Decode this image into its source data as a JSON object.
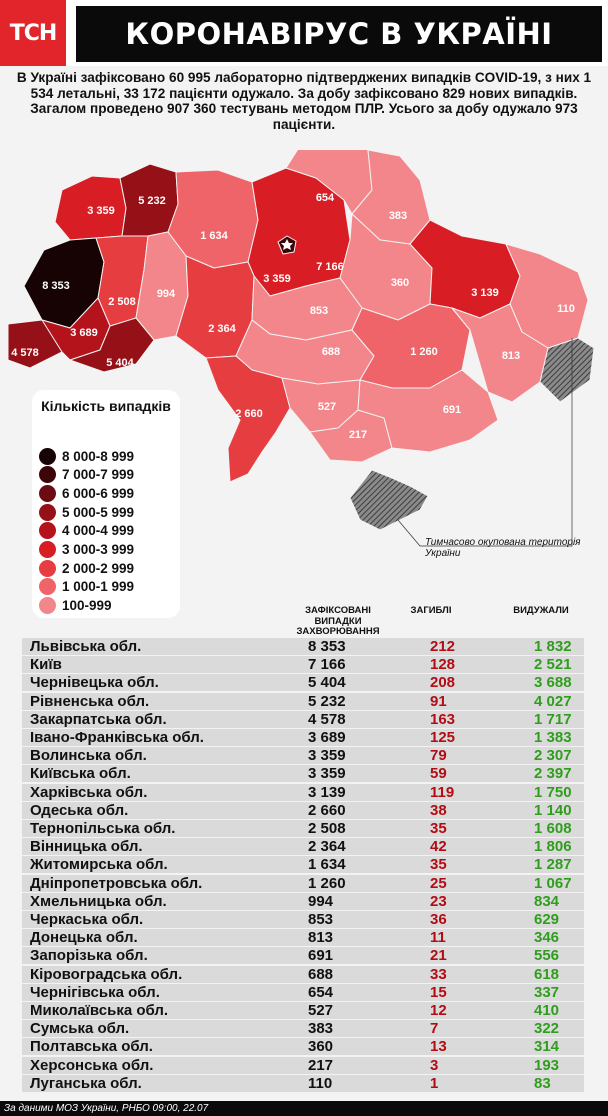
{
  "header": {
    "logo": "ТСН",
    "title": "КОРОНАВІРУС В УКРАЇНІ"
  },
  "intro": "В Україні зафіксовано 60 995 лабораторно підтверджених випадків COVID-19, з них 1 534 летальні, 33 172 пацієнти одужало. За добу зафіксовано 829 нових випадків. Загалом проведено 907 360 тестувань методом ПЛР. Усього за добу одужало 973 пацієнти.",
  "legend": {
    "title": "Кількість випадків",
    "items": [
      {
        "label": "8 000-8 999",
        "color": "#170304"
      },
      {
        "label": "7 000-7 999",
        "color": "#3d0508"
      },
      {
        "label": "6 000-6 999",
        "color": "#6e0b10"
      },
      {
        "label": "5 000-5 999",
        "color": "#951017"
      },
      {
        "label": "4 000-4 999",
        "color": "#b4131b"
      },
      {
        "label": "3 000-3 999",
        "color": "#d81e24"
      },
      {
        "label": "2 000-2 999",
        "color": "#e63d41"
      },
      {
        "label": "1 000-1 999",
        "color": "#ee6469"
      },
      {
        "label": "100-999",
        "color": "#f2868a"
      }
    ]
  },
  "map": {
    "occupied_label": "Тимчасово окупована територія України",
    "labels": [
      {
        "region": "Волинська",
        "value": "3 359"
      },
      {
        "region": "Рівненська",
        "value": "5 232"
      },
      {
        "region": "Житомирська",
        "value": "1 634"
      },
      {
        "region": "Київська",
        "value": "3 359"
      },
      {
        "region": "Київ",
        "value": "7 166"
      },
      {
        "region": "Чернігівська",
        "value": "654"
      },
      {
        "region": "Сумська",
        "value": "383"
      },
      {
        "region": "Полтавська",
        "value": "360"
      },
      {
        "region": "Харківська",
        "value": "3 139"
      },
      {
        "region": "Луганська",
        "value": "110"
      },
      {
        "region": "Львівська",
        "value": "8 353"
      },
      {
        "region": "Тернопільська",
        "value": "2 508"
      },
      {
        "region": "Хмельницька",
        "value": "994"
      },
      {
        "region": "Вінницька",
        "value": "2 364"
      },
      {
        "region": "Черкаська",
        "value": "853"
      },
      {
        "region": "Кіровоградська",
        "value": "688"
      },
      {
        "region": "Дніпропетровська",
        "value": "1 260"
      },
      {
        "region": "Донецька",
        "value": "813"
      },
      {
        "region": "Закарпатська",
        "value": "4 578"
      },
      {
        "region": "Івано-Франківська",
        "value": "3 689"
      },
      {
        "region": "Чернівецька",
        "value": "5 404"
      },
      {
        "region": "Одеська",
        "value": "2 660"
      },
      {
        "region": "Миколаївська",
        "value": "527"
      },
      {
        "region": "Херсонська",
        "value": "217"
      },
      {
        "region": "Запорізька",
        "value": "691"
      }
    ]
  },
  "table": {
    "headers": {
      "cases": "Зафіксовані випадки захворювання",
      "deaths": "Загиблі",
      "recovered": "Видужали"
    },
    "rows": [
      {
        "name": "Львівська обл.",
        "cases": "8 353",
        "deaths": "212",
        "recovered": "1 832"
      },
      {
        "name": "Київ",
        "cases": "7 166",
        "deaths": "128",
        "recovered": "2 521"
      },
      {
        "name": "Чернівецька обл.",
        "cases": "5 404",
        "deaths": "208",
        "recovered": "3 688"
      },
      {
        "name": "Рівненська обл.",
        "cases": "5 232",
        "deaths": "91",
        "recovered": "4 027"
      },
      {
        "name": "Закарпатська обл.",
        "cases": "4 578",
        "deaths": "163",
        "recovered": "1 717"
      },
      {
        "name": "Івано-Франківська обл.",
        "cases": "3 689",
        "deaths": "125",
        "recovered": "1 383"
      },
      {
        "name": "Волинська обл.",
        "cases": "3 359",
        "deaths": "79",
        "recovered": "2 307"
      },
      {
        "name": "Київська обл.",
        "cases": "3 359",
        "deaths": "59",
        "recovered": "2 397"
      },
      {
        "name": "Харківська обл.",
        "cases": "3 139",
        "deaths": "119",
        "recovered": "1 750"
      },
      {
        "name": "Одеська обл.",
        "cases": "2 660",
        "deaths": "38",
        "recovered": "1 140"
      },
      {
        "name": "Тернопільська обл.",
        "cases": "2 508",
        "deaths": "35",
        "recovered": "1 608"
      },
      {
        "name": "Вінницька обл.",
        "cases": "2 364",
        "deaths": "42",
        "recovered": "1 806"
      },
      {
        "name": "Житомирська обл.",
        "cases": "1 634",
        "deaths": "35",
        "recovered": "1 287"
      },
      {
        "name": "Дніпропетровська обл.",
        "cases": "1 260",
        "deaths": "25",
        "recovered": "1 067"
      },
      {
        "name": "Хмельницька обл.",
        "cases": "994",
        "deaths": "23",
        "recovered": "834"
      },
      {
        "name": "Черкаська обл.",
        "cases": "853",
        "deaths": "36",
        "recovered": "629"
      },
      {
        "name": "Донецька обл.",
        "cases": "813",
        "deaths": "11",
        "recovered": "346"
      },
      {
        "name": "Запорізька обл.",
        "cases": "691",
        "deaths": "21",
        "recovered": "556"
      },
      {
        "name": "Кіровоградська обл.",
        "cases": "688",
        "deaths": "33",
        "recovered": "618"
      },
      {
        "name": "Чернігівська обл.",
        "cases": "654",
        "deaths": "15",
        "recovered": "337"
      },
      {
        "name": "Миколаївська обл.",
        "cases": "527",
        "deaths": "12",
        "recovered": "410"
      },
      {
        "name": "Сумська обл.",
        "cases": "383",
        "deaths": "7",
        "recovered": "322"
      },
      {
        "name": "Полтавська обл.",
        "cases": "360",
        "deaths": "13",
        "recovered": "314"
      },
      {
        "name": "Херсонська обл.",
        "cases": "217",
        "deaths": "3",
        "recovered": "193"
      },
      {
        "name": "Луганська обл.",
        "cases": "110",
        "deaths": "1",
        "recovered": "83"
      }
    ]
  },
  "footer": "За даними МОЗ України, РНБО 09:00, 22.07",
  "chart_data": {
    "type": "table",
    "title": "КОРОНАВІРУС В УКРАЇНІ",
    "columns": [
      "Зафіксовані випадки захворювання",
      "Загиблі",
      "Видужали"
    ],
    "categories": [
      "Львівська обл.",
      "Київ",
      "Чернівецька обл.",
      "Рівненська обл.",
      "Закарпатська обл.",
      "Івано-Франківська обл.",
      "Волинська обл.",
      "Київська обл.",
      "Харківська обл.",
      "Одеська обл.",
      "Тернопільська обл.",
      "Вінницька обл.",
      "Житомирська обл.",
      "Дніпропетровська обл.",
      "Хмельницька обл.",
      "Черкаська обл.",
      "Донецька обл.",
      "Запорізька обл.",
      "Кіровоградська обл.",
      "Чернігівська обл.",
      "Миколаївська обл.",
      "Сумська обл.",
      "Полтавська обл.",
      "Херсонська обл.",
      "Луганська обл."
    ],
    "series": [
      {
        "name": "Зафіксовані випадки захворювання",
        "values": [
          8353,
          7166,
          5404,
          5232,
          4578,
          3689,
          3359,
          3359,
          3139,
          2660,
          2508,
          2364,
          1634,
          1260,
          994,
          853,
          813,
          691,
          688,
          654,
          527,
          383,
          360,
          217,
          110
        ]
      },
      {
        "name": "Загиблі",
        "values": [
          212,
          128,
          208,
          91,
          163,
          125,
          79,
          59,
          119,
          38,
          35,
          42,
          35,
          25,
          23,
          36,
          11,
          21,
          33,
          15,
          12,
          7,
          13,
          3,
          1
        ]
      },
      {
        "name": "Видужали",
        "values": [
          1832,
          2521,
          3688,
          4027,
          1717,
          1383,
          2307,
          2397,
          1750,
          1140,
          1608,
          1806,
          1287,
          1067,
          834,
          629,
          346,
          556,
          618,
          337,
          410,
          322,
          314,
          193,
          83
        ]
      }
    ]
  }
}
